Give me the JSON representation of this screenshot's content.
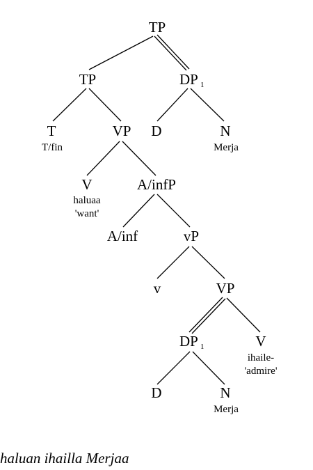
{
  "tree": {
    "tp_root": "TP",
    "tp": "TP",
    "dp_upper": "DP",
    "dp_upper_index": "1",
    "t": "T",
    "t_gloss": "T/fin",
    "vp_upper": "VP",
    "d_upper": "D",
    "n_upper": "N",
    "n_upper_gloss": "Merja",
    "v_upper": "V",
    "v_upper_gloss1": "haluaa",
    "v_upper_gloss2": "'want'",
    "a_infp": "A/infP",
    "a_inf": "A/inf",
    "little_vp": "vP",
    "little_v": "v",
    "vp_lower": "VP",
    "dp_lower": "DP",
    "dp_lower_index": "1",
    "v_lower": "V",
    "v_lower_gloss1": "ihaile-",
    "v_lower_gloss2": "'admire'",
    "d_lower": "D",
    "n_lower": "N",
    "n_lower_gloss": "Merja"
  },
  "caption": "haluan ihailla Merjaa"
}
